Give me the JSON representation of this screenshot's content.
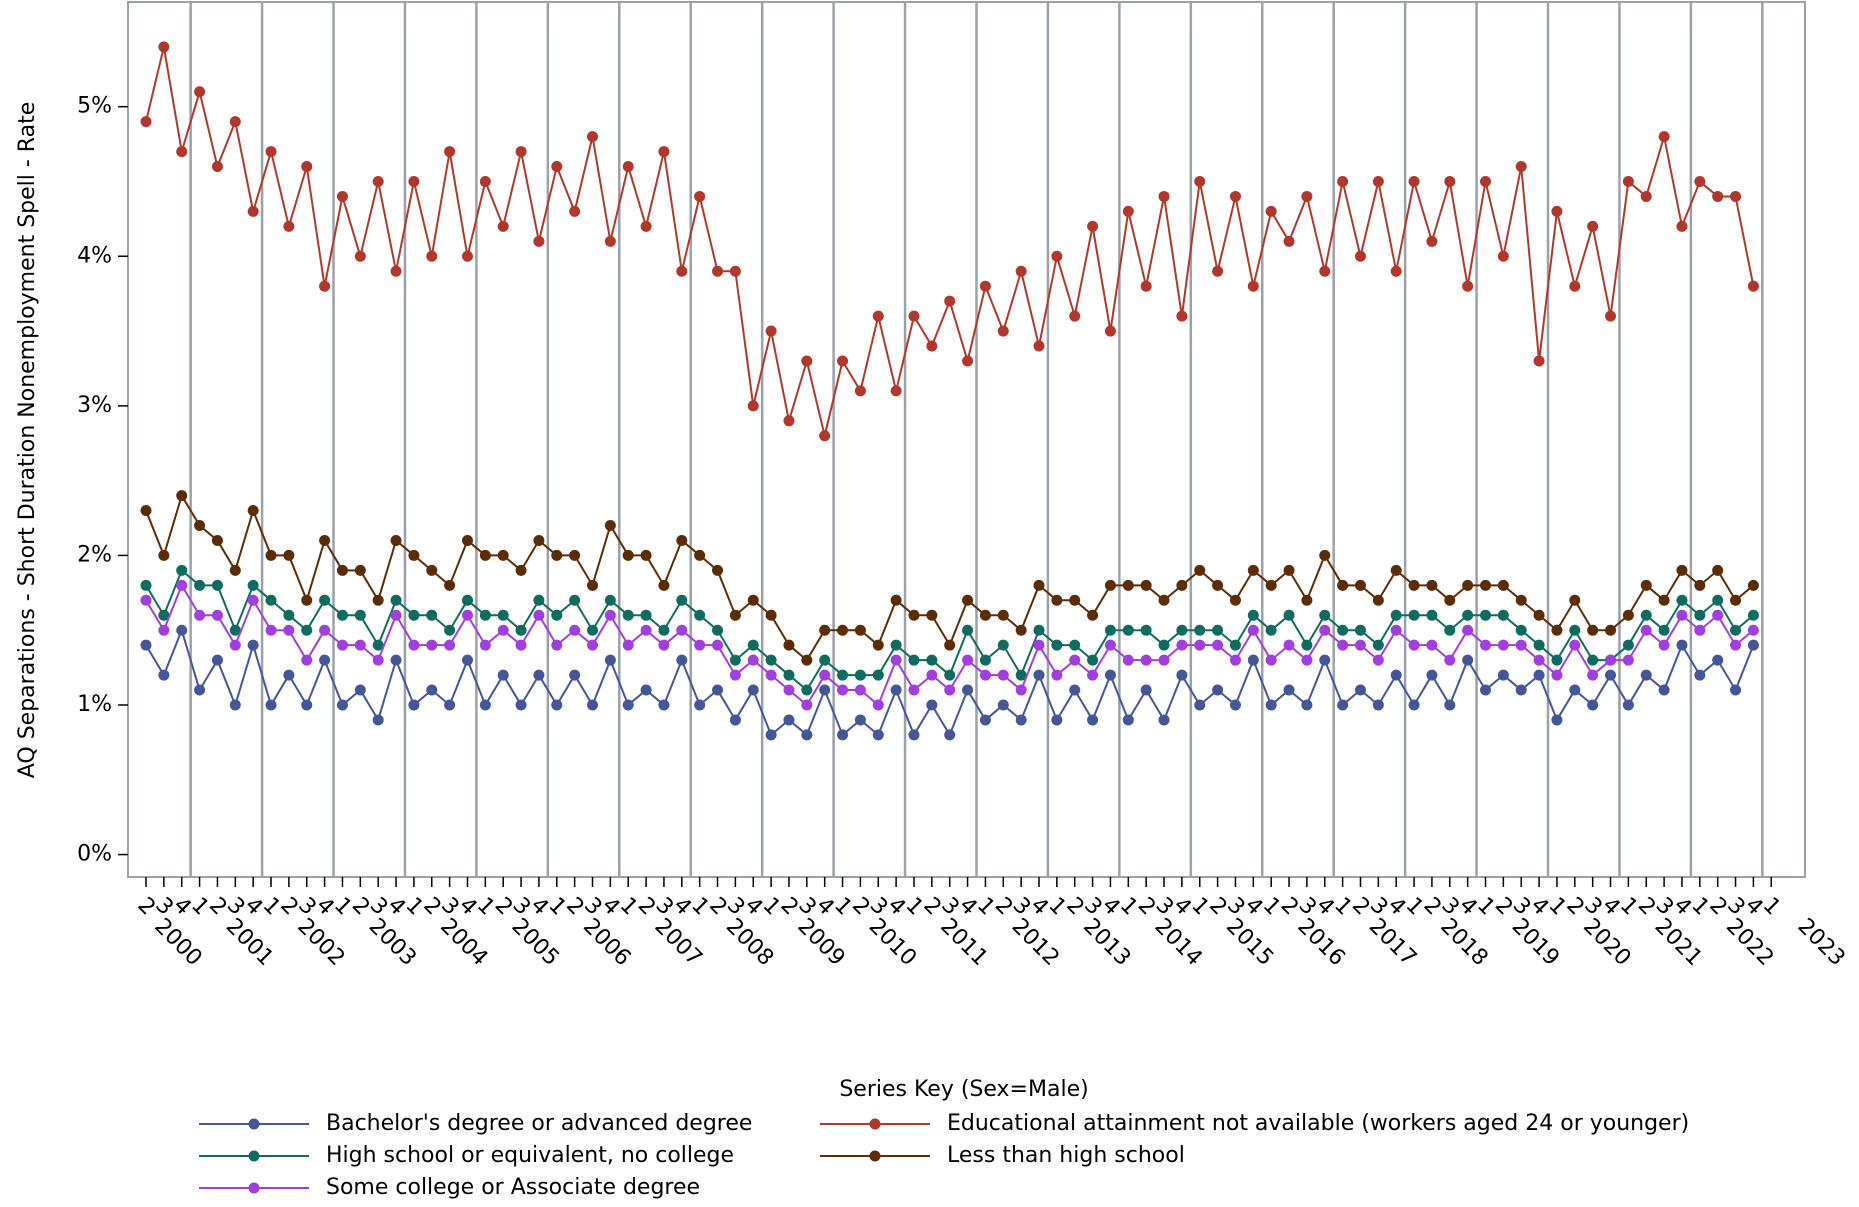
{
  "chart_data": {
    "type": "line",
    "y_label": "AQ Separations - Short Duration Nonemployment Spell - Rate",
    "legend_title": "Series Key (Sex=Male)",
    "categories": [
      "2",
      "3",
      "4",
      "1",
      "2",
      "3",
      "4",
      "1",
      "2",
      "3",
      "4",
      "1",
      "2",
      "3",
      "4",
      "1",
      "2",
      "3",
      "4",
      "1",
      "2",
      "3",
      "4",
      "1",
      "2",
      "3",
      "4",
      "1",
      "2",
      "3",
      "4",
      "1",
      "2",
      "3",
      "4",
      "1",
      "2",
      "3",
      "4",
      "1",
      "2",
      "3",
      "4",
      "1",
      "2",
      "3",
      "4",
      "1",
      "2",
      "3",
      "4",
      "1",
      "2",
      "3",
      "4",
      "1",
      "2",
      "3",
      "4",
      "1",
      "2",
      "3",
      "4",
      "1",
      "2",
      "3",
      "4",
      "1",
      "2",
      "3",
      "4",
      "1",
      "2",
      "3",
      "4",
      "1",
      "2",
      "3",
      "4",
      "1",
      "2",
      "3",
      "4",
      "1",
      "2",
      "3",
      "4",
      "1",
      "2",
      "3",
      "4",
      "1"
    ],
    "years": [
      "2000",
      "2001",
      "2002",
      "2003",
      "2004",
      "2005",
      "2006",
      "2007",
      "2008",
      "2009",
      "2010",
      "2011",
      "2012",
      "2013",
      "2014",
      "2015",
      "2016",
      "2017",
      "2018",
      "2019",
      "2020",
      "2021",
      "2022",
      "2023"
    ],
    "ylim": [
      -0.15,
      5.7
    ],
    "yticks": [
      {
        "value": 0,
        "label": "0%"
      },
      {
        "value": 1,
        "label": "1%"
      },
      {
        "value": 2,
        "label": "2%"
      },
      {
        "value": 3,
        "label": "3%"
      },
      {
        "value": 4,
        "label": "4%"
      },
      {
        "value": 5,
        "label": "5%"
      }
    ],
    "grid": true,
    "series": [
      {
        "name": "Bachelor's degree or advanced degree",
        "color": "#44559a",
        "values": [
          1.4,
          1.2,
          1.5,
          1.1,
          1.3,
          1.0,
          1.4,
          1.0,
          1.2,
          1.0,
          1.3,
          1.0,
          1.1,
          0.9,
          1.3,
          1.0,
          1.1,
          1.0,
          1.3,
          1.0,
          1.2,
          1.0,
          1.2,
          1.0,
          1.2,
          1.0,
          1.3,
          1.0,
          1.1,
          1.0,
          1.3,
          1.0,
          1.1,
          0.9,
          1.1,
          0.8,
          0.9,
          0.8,
          1.1,
          0.8,
          0.9,
          0.8,
          1.1,
          0.8,
          1.0,
          0.8,
          1.1,
          0.9,
          1.0,
          0.9,
          1.2,
          0.9,
          1.1,
          0.9,
          1.2,
          0.9,
          1.1,
          0.9,
          1.2,
          1.0,
          1.1,
          1.0,
          1.3,
          1.0,
          1.1,
          1.0,
          1.3,
          1.0,
          1.1,
          1.0,
          1.2,
          1.0,
          1.2,
          1.0,
          1.3,
          1.1,
          1.2,
          1.1,
          1.2,
          0.9,
          1.1,
          1.0,
          1.2,
          1.0,
          1.2,
          1.1,
          1.4,
          1.2,
          1.3,
          1.1,
          1.4,
          null
        ]
      },
      {
        "name": "High school or equivalent, no college",
        "color": "#0d6b5f",
        "values": [
          1.8,
          1.6,
          1.9,
          1.8,
          1.8,
          1.5,
          1.8,
          1.7,
          1.6,
          1.5,
          1.7,
          1.6,
          1.6,
          1.4,
          1.7,
          1.6,
          1.6,
          1.5,
          1.7,
          1.6,
          1.6,
          1.5,
          1.7,
          1.6,
          1.7,
          1.5,
          1.7,
          1.6,
          1.6,
          1.5,
          1.7,
          1.6,
          1.5,
          1.3,
          1.4,
          1.3,
          1.2,
          1.1,
          1.3,
          1.2,
          1.2,
          1.2,
          1.4,
          1.3,
          1.3,
          1.2,
          1.5,
          1.3,
          1.4,
          1.2,
          1.5,
          1.4,
          1.4,
          1.3,
          1.5,
          1.5,
          1.5,
          1.4,
          1.5,
          1.5,
          1.5,
          1.4,
          1.6,
          1.5,
          1.6,
          1.4,
          1.6,
          1.5,
          1.5,
          1.4,
          1.6,
          1.6,
          1.6,
          1.5,
          1.6,
          1.6,
          1.6,
          1.5,
          1.4,
          1.3,
          1.5,
          1.3,
          1.3,
          1.4,
          1.6,
          1.5,
          1.7,
          1.6,
          1.7,
          1.5,
          1.6,
          null
        ]
      },
      {
        "name": "Some college or Associate degree",
        "color": "#a23ee0",
        "values": [
          1.7,
          1.5,
          1.8,
          1.6,
          1.6,
          1.4,
          1.7,
          1.5,
          1.5,
          1.3,
          1.5,
          1.4,
          1.4,
          1.3,
          1.6,
          1.4,
          1.4,
          1.4,
          1.6,
          1.4,
          1.5,
          1.4,
          1.6,
          1.4,
          1.5,
          1.4,
          1.6,
          1.4,
          1.5,
          1.4,
          1.5,
          1.4,
          1.4,
          1.2,
          1.3,
          1.2,
          1.1,
          1.0,
          1.2,
          1.1,
          1.1,
          1.0,
          1.3,
          1.1,
          1.2,
          1.1,
          1.3,
          1.2,
          1.2,
          1.1,
          1.4,
          1.2,
          1.3,
          1.2,
          1.4,
          1.3,
          1.3,
          1.3,
          1.4,
          1.4,
          1.4,
          1.3,
          1.5,
          1.3,
          1.4,
          1.3,
          1.5,
          1.4,
          1.4,
          1.3,
          1.5,
          1.4,
          1.4,
          1.3,
          1.5,
          1.4,
          1.4,
          1.4,
          1.3,
          1.2,
          1.4,
          1.2,
          1.3,
          1.3,
          1.5,
          1.4,
          1.6,
          1.5,
          1.6,
          1.4,
          1.5,
          null
        ]
      },
      {
        "name": "Educational attainment not available (workers aged 24 or younger)",
        "color": "#b3362c",
        "values": [
          4.9,
          5.4,
          4.7,
          5.1,
          4.6,
          4.9,
          4.3,
          4.7,
          4.2,
          4.6,
          3.8,
          4.4,
          4.0,
          4.5,
          3.9,
          4.5,
          4.0,
          4.7,
          4.0,
          4.5,
          4.2,
          4.7,
          4.1,
          4.6,
          4.3,
          4.8,
          4.1,
          4.6,
          4.2,
          4.7,
          3.9,
          4.4,
          3.9,
          3.9,
          3.0,
          3.5,
          2.9,
          3.3,
          2.8,
          3.3,
          3.1,
          3.6,
          3.1,
          3.6,
          3.4,
          3.7,
          3.3,
          3.8,
          3.5,
          3.9,
          3.4,
          4.0,
          3.6,
          4.2,
          3.5,
          4.3,
          3.8,
          4.4,
          3.6,
          4.5,
          3.9,
          4.4,
          3.8,
          4.3,
          4.1,
          4.4,
          3.9,
          4.5,
          4.0,
          4.5,
          3.9,
          4.5,
          4.1,
          4.5,
          3.8,
          4.5,
          4.0,
          4.6,
          3.3,
          4.3,
          3.8,
          4.2,
          3.6,
          4.5,
          4.4,
          4.8,
          4.2,
          4.5,
          4.4,
          4.4,
          3.8,
          null
        ]
      },
      {
        "name": "Less than high school",
        "color": "#5b2c06",
        "values": [
          2.3,
          2.0,
          2.4,
          2.2,
          2.1,
          1.9,
          2.3,
          2.0,
          2.0,
          1.7,
          2.1,
          1.9,
          1.9,
          1.7,
          2.1,
          2.0,
          1.9,
          1.8,
          2.1,
          2.0,
          2.0,
          1.9,
          2.1,
          2.0,
          2.0,
          1.8,
          2.2,
          2.0,
          2.0,
          1.8,
          2.1,
          2.0,
          1.9,
          1.6,
          1.7,
          1.6,
          1.4,
          1.3,
          1.5,
          1.5,
          1.5,
          1.4,
          1.7,
          1.6,
          1.6,
          1.4,
          1.7,
          1.6,
          1.6,
          1.5,
          1.8,
          1.7,
          1.7,
          1.6,
          1.8,
          1.8,
          1.8,
          1.7,
          1.8,
          1.9,
          1.8,
          1.7,
          1.9,
          1.8,
          1.9,
          1.7,
          2.0,
          1.8,
          1.8,
          1.7,
          1.9,
          1.8,
          1.8,
          1.7,
          1.8,
          1.8,
          1.8,
          1.7,
          1.6,
          1.5,
          1.7,
          1.5,
          1.5,
          1.6,
          1.8,
          1.7,
          1.9,
          1.8,
          1.9,
          1.7,
          1.8,
          null
        ]
      }
    ]
  }
}
